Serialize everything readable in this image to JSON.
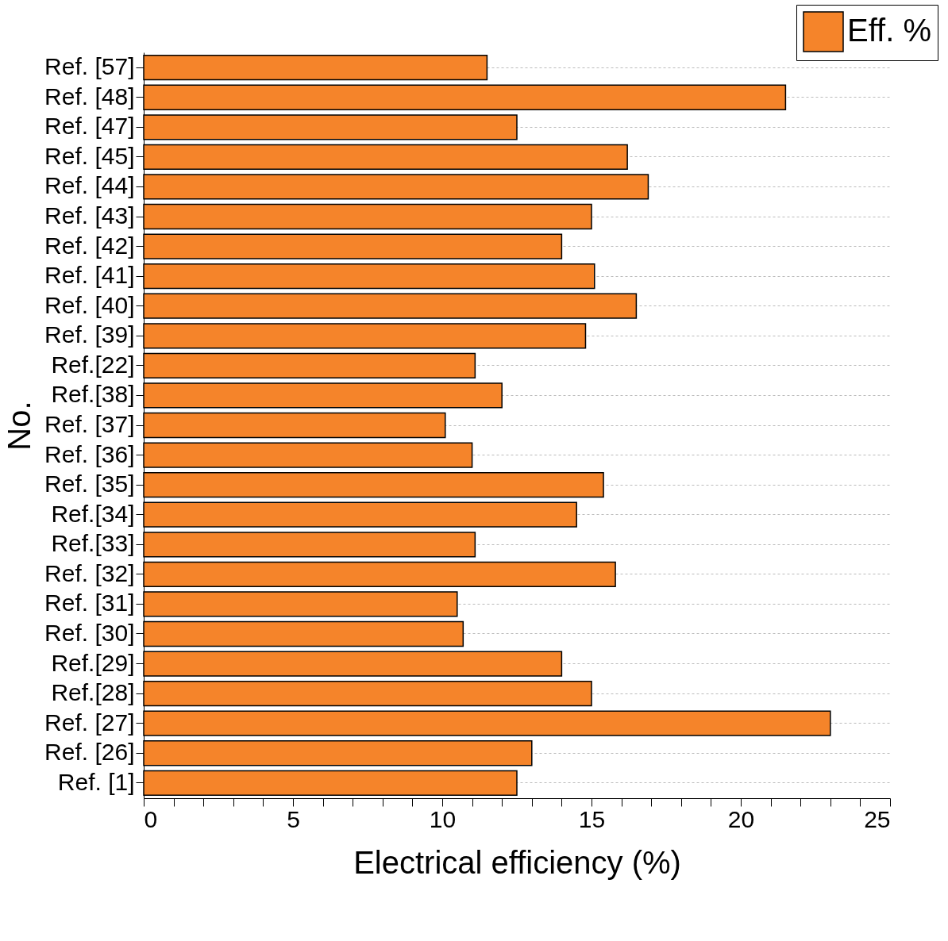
{
  "chart_data": {
    "type": "bar",
    "orientation": "horizontal",
    "xlabel": "Electrical efficiency (%)",
    "ylabel": "No.",
    "categories": [
      "Ref. [57]",
      "Ref. [48]",
      "Ref. [47]",
      "Ref. [45]",
      "Ref. [44]",
      "Ref. [43]",
      "Ref. [42]",
      "Ref. [41]",
      "Ref. [40]",
      "Ref. [39]",
      "Ref.[22]",
      "Ref.[38]",
      "Ref. [37]",
      "Ref. [36]",
      "Ref. [35]",
      "Ref.[34]",
      "Ref.[33]",
      "Ref. [32]",
      "Ref. [31]",
      "Ref. [30]",
      "Ref.[29]",
      "Ref.[28]",
      "Ref. [27]",
      "Ref. [26]",
      "Ref. [1]"
    ],
    "series": [
      {
        "name": "Eff. %",
        "color": "#f5842a",
        "values": [
          11.5,
          21.5,
          12.5,
          16.2,
          16.9,
          15.0,
          14.0,
          15.1,
          16.5,
          14.8,
          11.1,
          12.0,
          10.1,
          11.0,
          15.4,
          14.5,
          11.1,
          15.8,
          10.5,
          10.7,
          14.0,
          15.0,
          23.0,
          13.0,
          12.5
        ]
      }
    ],
    "xlim": [
      0,
      25
    ],
    "xticks": [
      0,
      {
        "value": 1,
        "label": null
      },
      {
        "value": 2,
        "label": null
      },
      {
        "value": 3,
        "label": null
      },
      {
        "value": 4,
        "label": null
      },
      5,
      {
        "value": 6,
        "label": null
      },
      {
        "value": 7,
        "label": null
      },
      {
        "value": 8,
        "label": null
      },
      {
        "value": 9,
        "label": null
      },
      10,
      {
        "value": 11,
        "label": null
      },
      {
        "value": 12,
        "label": null
      },
      {
        "value": 13,
        "label": null
      },
      {
        "value": 14,
        "label": null
      },
      15,
      {
        "value": 16,
        "label": null
      },
      {
        "value": 17,
        "label": null
      },
      {
        "value": 18,
        "label": null
      },
      {
        "value": 19,
        "label": null
      },
      20,
      {
        "value": 21,
        "label": null
      },
      {
        "value": 22,
        "label": null
      },
      {
        "value": 23,
        "label": null
      },
      {
        "value": 24,
        "label": null
      },
      25
    ],
    "grid": "y",
    "legend": "top right"
  }
}
